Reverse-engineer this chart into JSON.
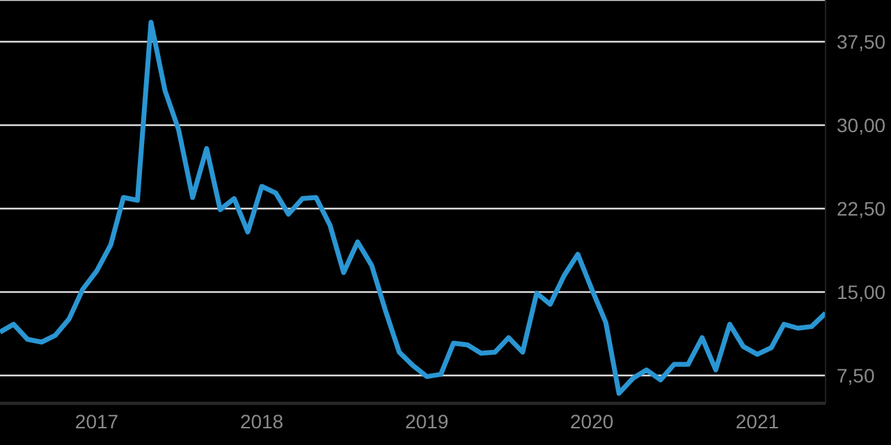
{
  "chart_data": {
    "type": "line",
    "x": [
      "2016-06",
      "2016-07",
      "2016-08",
      "2016-09",
      "2016-10",
      "2016-11",
      "2016-12",
      "2017-01",
      "2017-02",
      "2017-03",
      "2017-04",
      "2017-05",
      "2017-06",
      "2017-07",
      "2017-08",
      "2017-09",
      "2017-10",
      "2017-11",
      "2017-12",
      "2018-01",
      "2018-02",
      "2018-03",
      "2018-04",
      "2018-05",
      "2018-06",
      "2018-07",
      "2018-08",
      "2018-09",
      "2018-10",
      "2018-11",
      "2018-12",
      "2019-01",
      "2019-02",
      "2019-03",
      "2019-04",
      "2019-05",
      "2019-06",
      "2019-07",
      "2019-08",
      "2019-09",
      "2019-10",
      "2019-11",
      "2019-12",
      "2020-01",
      "2020-02",
      "2020-03",
      "2020-04",
      "2020-05",
      "2020-06",
      "2020-07",
      "2020-08",
      "2020-09",
      "2020-10",
      "2020-11",
      "2020-12",
      "2021-01",
      "2021-02",
      "2021-03",
      "2021-04",
      "2021-05",
      "2021-06"
    ],
    "series": [
      {
        "color": "#2a96d3",
        "values": [
          11.4,
          12.1,
          10.75,
          10.5,
          11.1,
          12.6,
          15.25,
          16.9,
          19.25,
          23.5,
          23.25,
          39.25,
          33.1,
          29.6,
          23.5,
          27.9,
          22.4,
          23.4,
          20.4,
          24.5,
          23.9,
          22,
          23.4,
          23.5,
          21,
          16.75,
          19.5,
          17.4,
          13.4,
          9.6,
          8.4,
          7.4,
          7.6,
          10.4,
          10.25,
          9.5,
          9.6,
          10.9,
          9.6,
          14.9,
          13.9,
          16.5,
          18.4,
          15.25,
          12.25,
          5.9,
          7.25,
          8,
          7.1,
          8.5,
          8.5,
          10.9,
          8,
          12.1,
          10.1,
          9.4,
          10,
          12.1,
          11.75,
          11.9,
          13.1
        ]
      }
    ],
    "xlim": [
      "2016-06",
      "2021-06"
    ],
    "xticks": [
      "2017",
      "2018",
      "2019",
      "2020",
      "2021"
    ],
    "ylim": [
      5,
      41.25
    ],
    "yticks": [
      {
        "value": 7.5,
        "label": "7,50"
      },
      {
        "value": 15,
        "label": "15,00"
      },
      {
        "value": 22.5,
        "label": "22,50"
      },
      {
        "value": 30,
        "label": "30,00"
      },
      {
        "value": 37.5,
        "label": "37,50"
      }
    ],
    "grid": "y",
    "marker": "none",
    "line_style": "solid"
  }
}
